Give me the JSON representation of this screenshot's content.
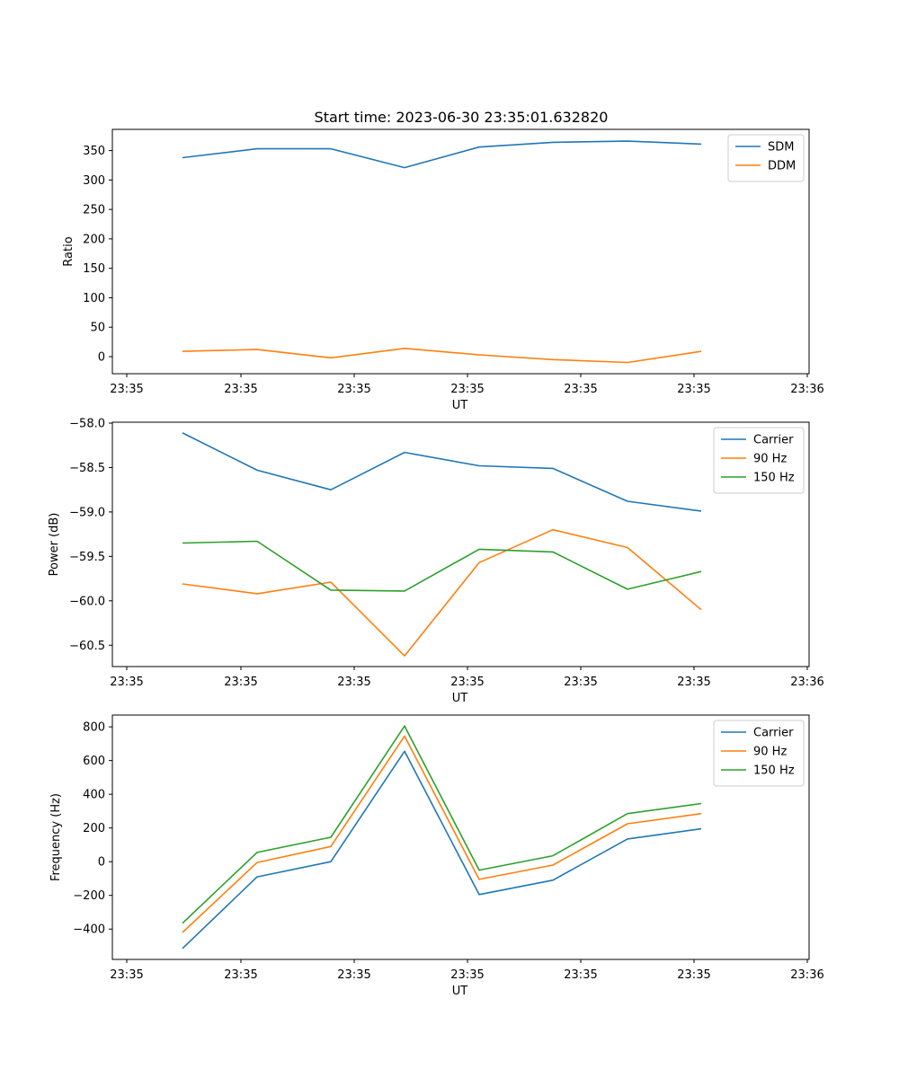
{
  "figure": {
    "title": "Start time: 2023-06-30 23:35:01.632820"
  },
  "chart_data": [
    {
      "type": "line",
      "xlabel": "UT",
      "ylabel": "Ratio",
      "x_tick_labels": [
        "23:35",
        "23:35",
        "23:35",
        "23:35",
        "23:35",
        "23:35",
        "23:36"
      ],
      "y_ticks": [
        0,
        50,
        100,
        150,
        200,
        250,
        300,
        350
      ],
      "ylim": [
        -29,
        386
      ],
      "legend_position": "upper right",
      "series": [
        {
          "name": "SDM",
          "color": "#1f77b4",
          "values": [
            338,
            353,
            353,
            321,
            356,
            364,
            366,
            361
          ]
        },
        {
          "name": "DDM",
          "color": "#ff7f0e",
          "values": [
            9,
            12,
            -2,
            14,
            3,
            -5,
            -10,
            9
          ]
        }
      ]
    },
    {
      "type": "line",
      "xlabel": "UT",
      "ylabel": "Power (dB)",
      "x_tick_labels": [
        "23:35",
        "23:35",
        "23:35",
        "23:35",
        "23:35",
        "23:35",
        "23:36"
      ],
      "y_ticks": [
        -60.5,
        -60.0,
        -59.5,
        -59.0,
        -58.5,
        -58.0
      ],
      "y_tick_labels": [
        "−60.5",
        "−60.0",
        "−59.5",
        "−59.0",
        "−58.5",
        "−58.0"
      ],
      "ylim": [
        -60.74,
        -57.99
      ],
      "legend_position": "upper right",
      "series": [
        {
          "name": "Carrier",
          "color": "#1f77b4",
          "values": [
            -58.11,
            -58.53,
            -58.75,
            -58.33,
            -58.48,
            -58.51,
            -58.88,
            -58.99
          ]
        },
        {
          "name": "90 Hz",
          "color": "#ff7f0e",
          "values": [
            -59.81,
            -59.92,
            -59.79,
            -60.62,
            -59.57,
            -59.2,
            -59.4,
            -60.1
          ]
        },
        {
          "name": "150 Hz",
          "color": "#2ca02c",
          "values": [
            -59.35,
            -59.33,
            -59.88,
            -59.89,
            -59.42,
            -59.45,
            -59.87,
            -59.67
          ]
        }
      ]
    },
    {
      "type": "line",
      "xlabel": "UT",
      "ylabel": "Frequency (Hz)",
      "x_tick_labels": [
        "23:35",
        "23:35",
        "23:35",
        "23:35",
        "23:35",
        "23:35",
        "23:36"
      ],
      "y_ticks": [
        -400,
        -200,
        0,
        200,
        400,
        600,
        800
      ],
      "y_tick_labels": [
        "−400",
        "−200",
        "0",
        "200",
        "400",
        "600",
        "800"
      ],
      "ylim": [
        -580,
        870
      ],
      "legend_position": "upper right",
      "series": [
        {
          "name": "Carrier",
          "color": "#1f77b4",
          "values": [
            -515,
            -90,
            0,
            655,
            -195,
            -110,
            135,
            195
          ]
        },
        {
          "name": "90 Hz",
          "color": "#ff7f0e",
          "values": [
            -420,
            -5,
            90,
            745,
            -105,
            -20,
            225,
            285
          ]
        },
        {
          "name": "150 Hz",
          "color": "#2ca02c",
          "values": [
            -365,
            55,
            145,
            805,
            -50,
            35,
            285,
            345
          ]
        }
      ]
    }
  ]
}
